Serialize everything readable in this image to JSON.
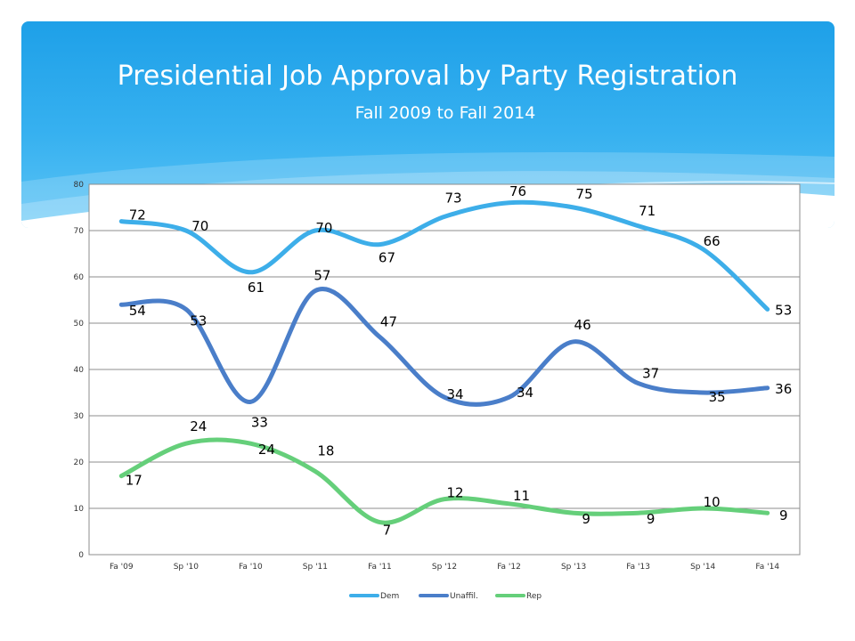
{
  "slide": {
    "title": "Presidential Job Approval by Party Registration",
    "subtitle": "Fall 2009 to Fall 2014"
  },
  "colors": {
    "header_gradient_top": "#1ea0e8",
    "header_gradient_bottom": "#5cc4f5",
    "dem": "#3daee9",
    "unaffil": "#4a7ec9",
    "rep": "#65cf7a"
  },
  "chart_data": {
    "type": "line",
    "smooth": true,
    "categories": [
      "Fa '09",
      "Sp '10",
      "Fa '10",
      "Sp '11",
      "Fa '11",
      "Sp '12",
      "Fa '12",
      "Sp '13",
      "Fa '13",
      "Sp '14",
      "Fa '14"
    ],
    "series": [
      {
        "name": "Dem",
        "color": "#3daee9",
        "values": [
          72,
          70,
          61,
          70,
          67,
          73,
          76,
          75,
          71,
          66,
          53
        ]
      },
      {
        "name": "Unaffil.",
        "color": "#4a7ec9",
        "values": [
          54,
          53,
          33,
          57,
          47,
          34,
          34,
          46,
          37,
          35,
          36
        ]
      },
      {
        "name": "Rep",
        "color": "#65cf7a",
        "values": [
          17,
          24,
          24,
          18,
          7,
          12,
          11,
          9,
          9,
          10,
          9
        ]
      }
    ],
    "ylim": [
      0,
      80
    ],
    "yticks": [
      0,
      10,
      20,
      30,
      40,
      50,
      60,
      70,
      80
    ],
    "grid": true,
    "legend": "bottom",
    "data_labels": true
  }
}
